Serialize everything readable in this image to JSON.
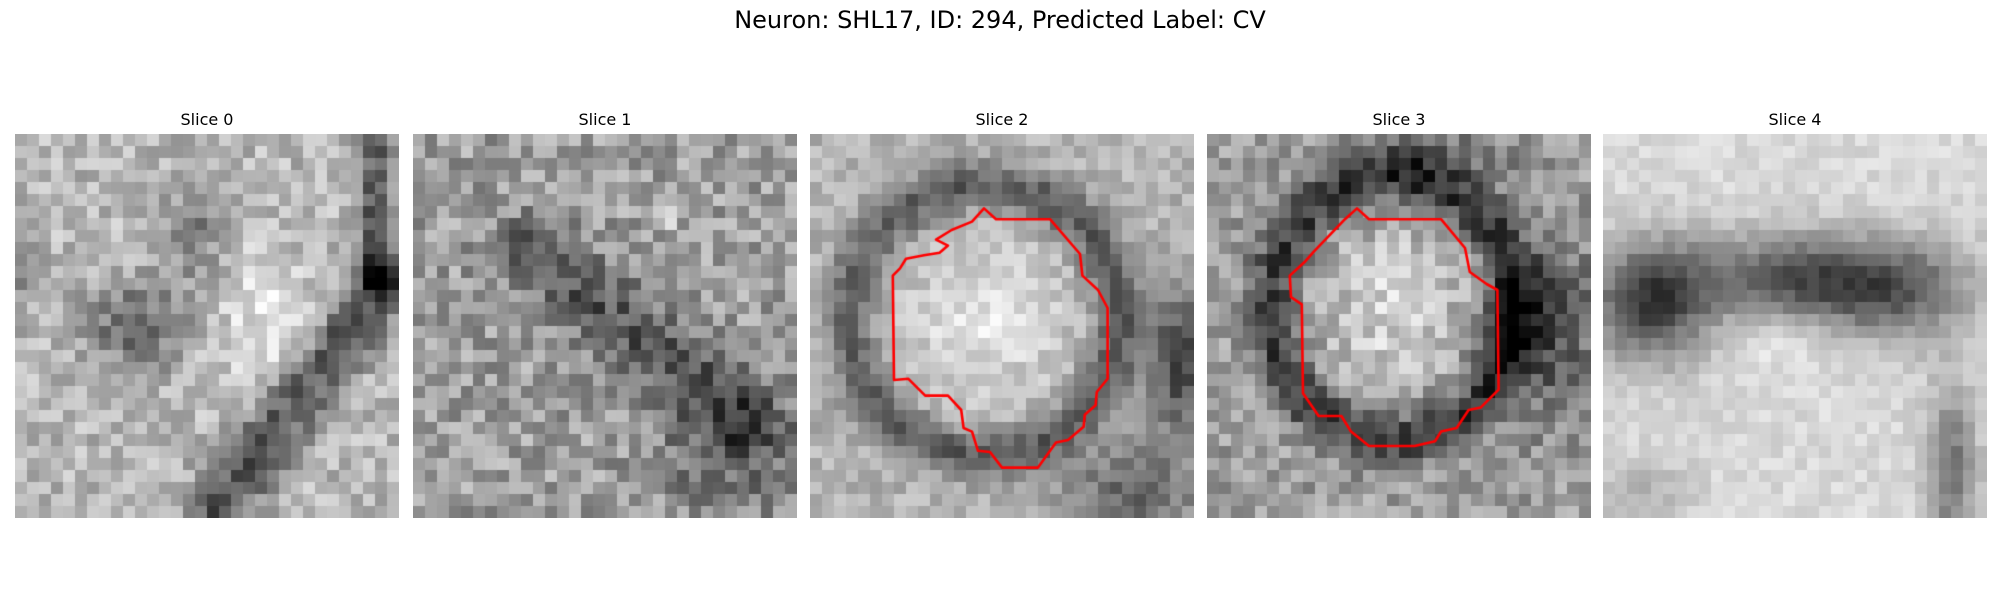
{
  "figure": {
    "title": "Neuron: SHL17, ID: 294, Predicted Label: CV"
  },
  "panels": [
    {
      "title": "Slice 0",
      "style": "diagonal-process",
      "outline": false
    },
    {
      "title": "Slice 1",
      "style": "noisy-band",
      "outline": false
    },
    {
      "title": "Slice 2",
      "style": "round-cell",
      "outline": true
    },
    {
      "title": "Slice 3",
      "style": "round-cell-alt",
      "outline": true
    },
    {
      "title": "Slice 4",
      "style": "dark-band",
      "outline": false
    }
  ],
  "colors": {
    "outline": "#ff0000",
    "colormap": "gray"
  }
}
